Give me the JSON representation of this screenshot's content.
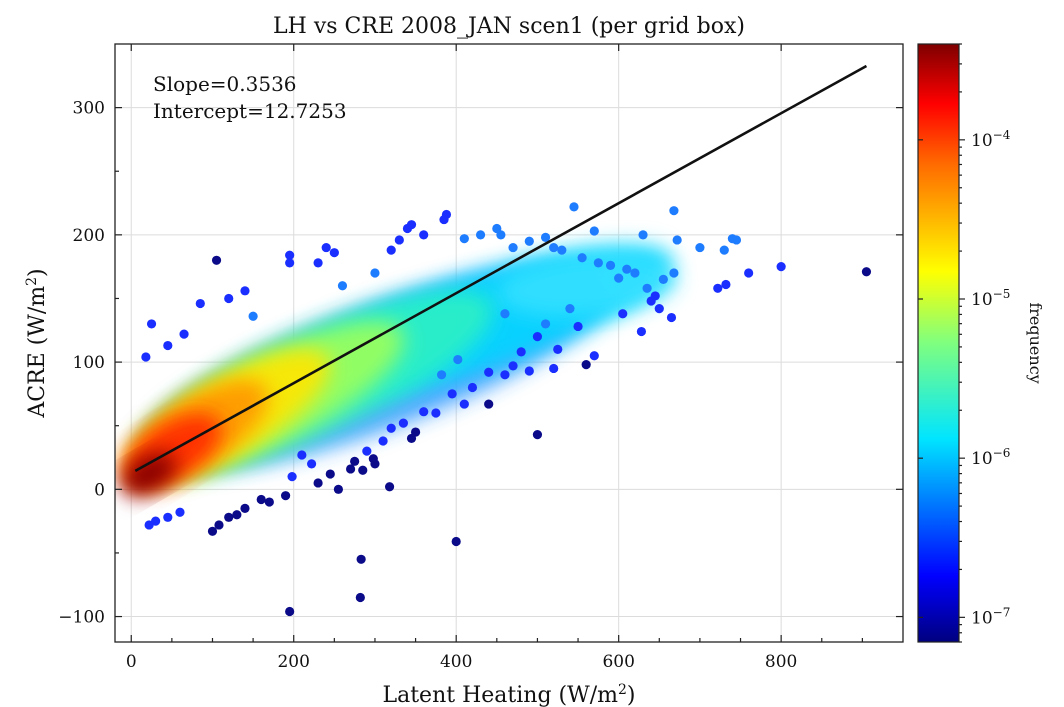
{
  "chart_data": {
    "type": "scatter",
    "title": "LH vs CRE 2008_JAN scen1 (per grid box)",
    "xlabel": "Latent Heating (W/m",
    "xlabel_sup": "2",
    "xlabel_close": ")",
    "ylabel": "ACRE (W/m",
    "ylabel_sup": "2",
    "ylabel_close": ")",
    "xlim": [
      -20,
      950
    ],
    "ylim": [
      -120,
      350
    ],
    "xticks": [
      0,
      200,
      400,
      600,
      800
    ],
    "yticks": [
      -100,
      0,
      100,
      200,
      300
    ],
    "xtick_labels": [
      "0",
      "200",
      "400",
      "600",
      "800"
    ],
    "ytick_labels": [
      "−100",
      "0",
      "100",
      "200",
      "300"
    ],
    "grid": true,
    "annotations": {
      "slope": "Slope=0.3536",
      "intercept": "Intercept=12.7253"
    },
    "regression": {
      "slope": 0.3536,
      "intercept": 12.7253,
      "x_range": [
        5,
        905
      ]
    },
    "colorbar": {
      "label": "frequency",
      "scale": "log",
      "range": [
        7e-08,
        0.0004
      ],
      "colormap": "jet",
      "ticks": [
        1e-07,
        1e-06,
        1e-05,
        0.0001
      ],
      "tick_bases": [
        "10",
        "10",
        "10",
        "10"
      ],
      "tick_exps": [
        "−7",
        "−6",
        "−5",
        "−4"
      ]
    },
    "outliers": [
      [
        195,
        -96
      ],
      [
        282,
        -85
      ],
      [
        283,
        -55
      ],
      [
        400,
        -41
      ],
      [
        500,
        43
      ],
      [
        105,
        180
      ],
      [
        195,
        184
      ],
      [
        195,
        178
      ],
      [
        385,
        212
      ],
      [
        388,
        216
      ],
      [
        455,
        200
      ],
      [
        545,
        222
      ],
      [
        570,
        203
      ],
      [
        630,
        200
      ],
      [
        668,
        219
      ],
      [
        672,
        196
      ],
      [
        700,
        190
      ],
      [
        730,
        188
      ],
      [
        740,
        197
      ],
      [
        745,
        196
      ],
      [
        760,
        170
      ],
      [
        800,
        175
      ],
      [
        905,
        171
      ],
      [
        722,
        158
      ],
      [
        732,
        161
      ],
      [
        668,
        170
      ],
      [
        665,
        135
      ],
      [
        628,
        124
      ],
      [
        640,
        148
      ],
      [
        605,
        138
      ],
      [
        560,
        98
      ],
      [
        520,
        95
      ],
      [
        570,
        105
      ],
      [
        460,
        90
      ],
      [
        470,
        97
      ],
      [
        480,
        108
      ],
      [
        490,
        93
      ],
      [
        440,
        67
      ],
      [
        410,
        67
      ],
      [
        402,
        102
      ],
      [
        382,
        90
      ],
      [
        360,
        61
      ],
      [
        335,
        52
      ],
      [
        320,
        48
      ],
      [
        318,
        2
      ],
      [
        298,
        24
      ],
      [
        290,
        30
      ],
      [
        285,
        15
      ],
      [
        270,
        16
      ],
      [
        255,
        0
      ],
      [
        245,
        12
      ],
      [
        222,
        20
      ],
      [
        210,
        27
      ],
      [
        198,
        10
      ],
      [
        190,
        -5
      ],
      [
        170,
        -10
      ],
      [
        160,
        -8
      ],
      [
        140,
        -15
      ],
      [
        130,
        -20
      ],
      [
        120,
        -22
      ],
      [
        108,
        -28
      ],
      [
        100,
        -33
      ],
      [
        25,
        130
      ],
      [
        18,
        104
      ],
      [
        45,
        113
      ],
      [
        65,
        122
      ],
      [
        85,
        146
      ],
      [
        120,
        150
      ],
      [
        140,
        156
      ],
      [
        150,
        136
      ],
      [
        230,
        178
      ],
      [
        240,
        190
      ],
      [
        250,
        186
      ],
      [
        260,
        160
      ],
      [
        300,
        170
      ],
      [
        320,
        188
      ],
      [
        340,
        205
      ],
      [
        345,
        208
      ],
      [
        330,
        196
      ],
      [
        360,
        200
      ],
      [
        410,
        197
      ],
      [
        430,
        200
      ],
      [
        450,
        205
      ],
      [
        470,
        190
      ],
      [
        490,
        195
      ],
      [
        510,
        198
      ],
      [
        520,
        190
      ],
      [
        530,
        188
      ],
      [
        555,
        182
      ],
      [
        575,
        178
      ],
      [
        590,
        176
      ],
      [
        600,
        166
      ],
      [
        610,
        173
      ],
      [
        620,
        170
      ],
      [
        635,
        158
      ],
      [
        645,
        152
      ],
      [
        650,
        142
      ],
      [
        655,
        165
      ],
      [
        540,
        142
      ],
      [
        550,
        128
      ],
      [
        510,
        130
      ],
      [
        460,
        138
      ],
      [
        500,
        120
      ],
      [
        525,
        110
      ],
      [
        440,
        92
      ],
      [
        420,
        80
      ],
      [
        395,
        75
      ],
      [
        375,
        60
      ],
      [
        350,
        45
      ],
      [
        345,
        40
      ],
      [
        310,
        38
      ],
      [
        300,
        20
      ],
      [
        275,
        22
      ],
      [
        230,
        5
      ],
      [
        60,
        -18
      ],
      [
        45,
        -22
      ],
      [
        30,
        -25
      ],
      [
        22,
        -28
      ]
    ]
  }
}
